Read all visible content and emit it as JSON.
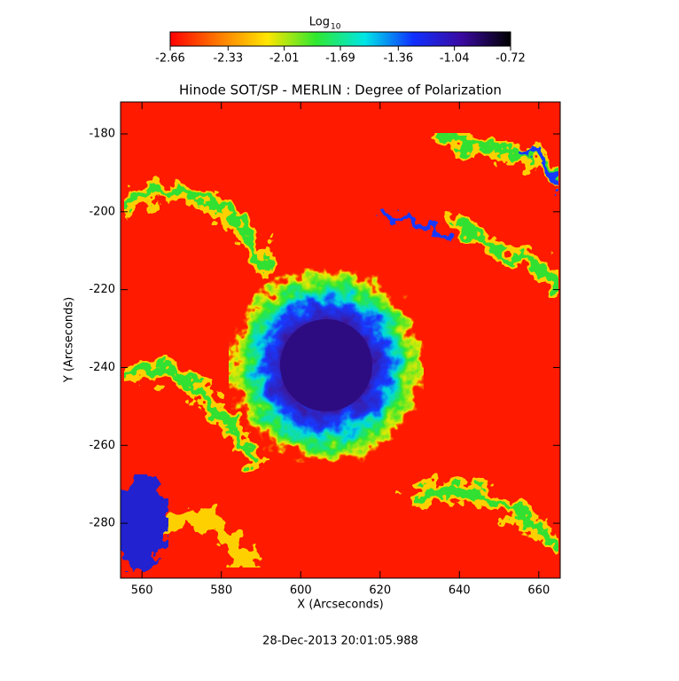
{
  "chart_data": {
    "type": "heatmap",
    "title": "Hinode SOT/SP - MERLIN : Degree of Polarization",
    "x_label": "X (Arcseconds)",
    "y_label": "Y (Arcseconds)",
    "xlim": [
      554.6,
      665.4
    ],
    "ylim": [
      -294.1,
      -171.8
    ],
    "xticks": [
      560,
      580,
      600,
      620,
      640,
      660
    ],
    "yticks": [
      -180,
      -200,
      -220,
      -240,
      -260,
      -280
    ],
    "colorbar": {
      "label": "Log",
      "label_sub": "10",
      "clim": [
        -2.66,
        -0.72
      ],
      "ticks": [
        -2.66,
        -2.33,
        -2.01,
        -1.69,
        -1.36,
        -1.04,
        -0.72
      ],
      "colormap": [
        "#ff0000",
        "#ff7a00",
        "#ffe600",
        "#2fe82f",
        "#00e6e6",
        "#1030ff",
        "#3a0aa0",
        "#000000"
      ]
    },
    "timestamp": "28-Dec-2013 20:01:05.988"
  }
}
